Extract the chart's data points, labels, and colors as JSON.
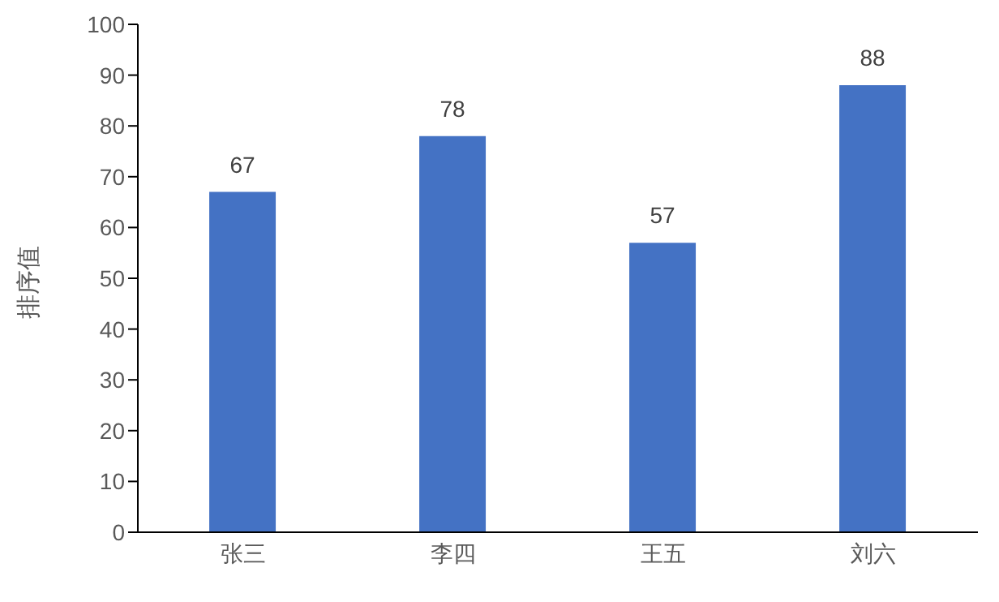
{
  "chart_data": {
    "type": "bar",
    "ylabel": "排序值",
    "categories": [
      "张三",
      "李四",
      "王五",
      "刘六"
    ],
    "values": [
      67,
      78,
      57,
      88
    ],
    "color": "#4472c4",
    "ylim": [
      0,
      100
    ],
    "yticks": [
      0,
      10,
      20,
      30,
      40,
      50,
      60,
      70,
      80,
      90,
      100
    ],
    "grid": false,
    "data_labels": true
  }
}
